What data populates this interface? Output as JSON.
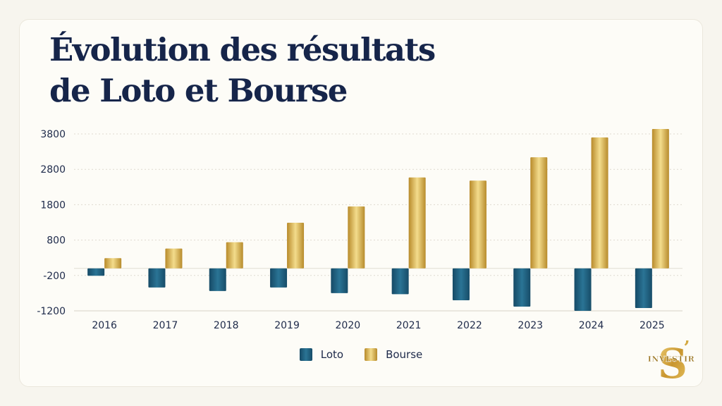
{
  "title": {
    "line1": "Évolution des résultats",
    "line2": "de Loto et Bourse"
  },
  "chart_data": {
    "type": "bar",
    "title": "Évolution des résultats de Loto et Bourse",
    "xlabel": "",
    "ylabel": "",
    "categories": [
      "2016",
      "2017",
      "2018",
      "2019",
      "2020",
      "2021",
      "2022",
      "2023",
      "2024",
      "2025"
    ],
    "yticks": [
      3800,
      2800,
      1800,
      800,
      -200,
      -1200
    ],
    "ytick_labels": [
      "3800",
      "2800",
      "1800",
      "800",
      "-200",
      "-1200"
    ],
    "ylim": [
      -1200,
      3800
    ],
    "grid": true,
    "legend_position": "bottom-center",
    "series": [
      {
        "name": "Loto",
        "color": "#1b5a7a",
        "values": [
          -210,
          -540,
          -640,
          -540,
          -700,
          -730,
          -900,
          -1080,
          -1200,
          -1120
        ]
      },
      {
        "name": "Bourse",
        "color": "#d4a942",
        "values": [
          290,
          560,
          740,
          1290,
          1750,
          2570,
          2480,
          3140,
          3700,
          3940
        ]
      }
    ]
  },
  "logo": {
    "letter": "S",
    "apostrophe": "’",
    "text": "INVESTIR"
  }
}
